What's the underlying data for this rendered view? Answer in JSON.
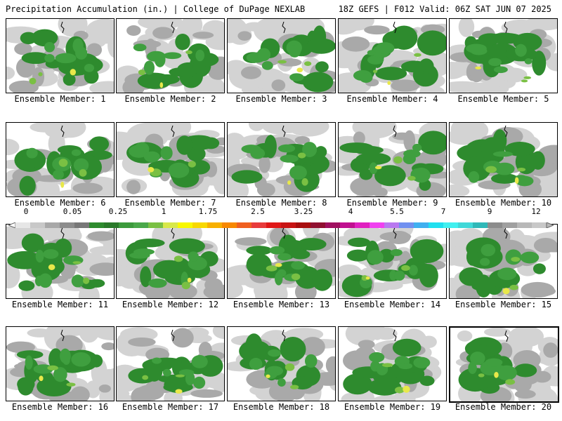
{
  "header": {
    "title": "Precipitation Accumulation (in.) | College of DuPage NEXLAB",
    "valid": "18Z GEFS | F012 Valid: 06Z SAT JUN 07 2025"
  },
  "member_label_prefix": "Ensemble Member:",
  "panels": [
    {
      "member": "1"
    },
    {
      "member": "2"
    },
    {
      "member": "3"
    },
    {
      "member": "4"
    },
    {
      "member": "5"
    },
    {
      "member": "6"
    },
    {
      "member": "7"
    },
    {
      "member": "8"
    },
    {
      "member": "9"
    },
    {
      "member": "10"
    },
    {
      "member": "11"
    },
    {
      "member": "12"
    },
    {
      "member": "13"
    },
    {
      "member": "14"
    },
    {
      "member": "15"
    },
    {
      "member": "16"
    },
    {
      "member": "17"
    },
    {
      "member": "18"
    },
    {
      "member": "19"
    },
    {
      "member": "20",
      "selected": true
    }
  ],
  "colorbar": {
    "tick_labels": [
      "0",
      "0.05",
      "0.25",
      "1",
      "1.75",
      "2.5",
      "3.25",
      "4",
      "5.5",
      "7",
      "9",
      "12"
    ],
    "colors": [
      "#e6e6e6",
      "#c8c8c8",
      "#a8a8a8",
      "#8c8c8c",
      "#787878",
      "#2e8b2e",
      "#2a7a2a",
      "#3c9a3c",
      "#4aa84a",
      "#7ac043",
      "#d8e84a",
      "#f8f800",
      "#f8d800",
      "#f8b000",
      "#f88800",
      "#f06020",
      "#e83c3c",
      "#e01818",
      "#c81414",
      "#a80f0f",
      "#901030",
      "#a01060",
      "#c01090",
      "#e020c0",
      "#f040f0",
      "#b878f0",
      "#7090f0",
      "#40b0f0",
      "#20e0f0",
      "#40f0f0",
      "#40d8d8",
      "#30b8b8",
      "#8c8c8c",
      "#a0a0a0",
      "#b8b8b8",
      "#c8c8c8"
    ]
  },
  "palette": {
    "light": "#d3d3d3",
    "gray": "#a9a9a9",
    "dgreen": "#2e8b2e",
    "mgreen": "#3f9f3f",
    "lgreen": "#7ac043",
    "yellow": "#e8e84a",
    "orange": "#f0a000",
    "red": "#e03030"
  }
}
